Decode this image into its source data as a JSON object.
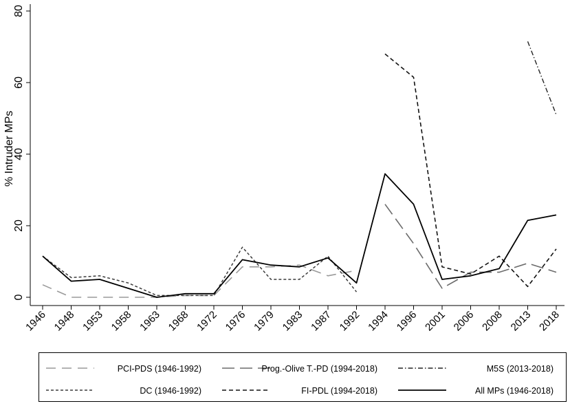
{
  "chart_data": {
    "type": "line",
    "ylabel": "% Intruder MPs",
    "xlabel": "",
    "title": "",
    "categories": [
      "1946",
      "1948",
      "1953",
      "1958",
      "1963",
      "1968",
      "1972",
      "1976",
      "1979",
      "1983",
      "1987",
      "1992",
      "1994",
      "1996",
      "2001",
      "2006",
      "2008",
      "2013",
      "2018"
    ],
    "yticks": [
      "0",
      "20",
      "40",
      "60",
      "80"
    ],
    "ylim": [
      0,
      82
    ],
    "grid": false,
    "legend_position": "bottom",
    "series": [
      {
        "name": "PCI-PDS (1946-1992)",
        "dash": "long-light",
        "values": [
          3.5,
          0,
          0,
          0,
          0,
          0.5,
          0.5,
          8.5,
          8.5,
          9.0,
          6.0,
          7.5,
          null,
          null,
          null,
          null,
          null,
          null,
          null
        ]
      },
      {
        "name": "Prog.-Olive T.-PD (1994-2018)",
        "dash": "long-dark",
        "values": [
          null,
          null,
          null,
          null,
          null,
          null,
          null,
          null,
          null,
          null,
          null,
          null,
          26.0,
          15.0,
          2.5,
          7.0,
          7.0,
          9.5,
          7.0
        ]
      },
      {
        "name": "M5S (2013-2018)",
        "dash": "dash-dot",
        "values": [
          null,
          null,
          null,
          null,
          null,
          null,
          null,
          null,
          null,
          null,
          null,
          null,
          null,
          null,
          null,
          null,
          null,
          71.5,
          51.0
        ]
      },
      {
        "name": "DC (1946-1992)",
        "dash": "short",
        "values": [
          11.5,
          5.5,
          6.0,
          4.0,
          0.5,
          0.5,
          0.5,
          14.0,
          5.0,
          5.0,
          11.5,
          1.5,
          null,
          null,
          null,
          null,
          null,
          null,
          null
        ]
      },
      {
        "name": "FI-PDL (1994-2018)",
        "dash": "medium",
        "values": [
          null,
          null,
          null,
          null,
          null,
          null,
          null,
          null,
          null,
          null,
          null,
          null,
          68.0,
          61.5,
          8.5,
          6.5,
          11.5,
          3.0,
          13.5
        ]
      },
      {
        "name": "All MPs (1946-2018)",
        "dash": "solid",
        "values": [
          11.5,
          4.5,
          5.0,
          2.5,
          0,
          1.0,
          1.0,
          10.5,
          9.0,
          8.5,
          11.0,
          4.0,
          34.5,
          26.0,
          5.0,
          6.0,
          8.0,
          21.5,
          23.0
        ]
      }
    ]
  }
}
